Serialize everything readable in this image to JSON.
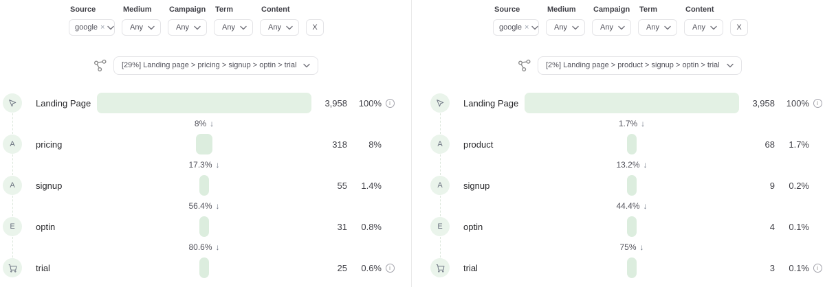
{
  "colors": {
    "bar_fill_large": "#e3f1e4",
    "bar_fill_small": "#dcedde",
    "node_bg": "#eaf4eb",
    "divider": "#e9e9e9"
  },
  "panels": [
    {
      "filters": {
        "fields": [
          {
            "label": "Source",
            "value": "google",
            "removable": true
          },
          {
            "label": "Medium",
            "value": "Any"
          },
          {
            "label": "Campaign",
            "value": "Any"
          },
          {
            "label": "Term",
            "value": "Any"
          },
          {
            "label": "Content",
            "value": "Any"
          }
        ],
        "clear_label": "X"
      },
      "funnel_select": {
        "value": "[29%]  Landing page > pricing > signup > optin > trial"
      },
      "funnel": {
        "steps": [
          {
            "icon": "cursor",
            "label": "Landing Page",
            "count": "3,958",
            "pct": "100%",
            "bar_pct": 100,
            "info": true
          },
          {
            "icon_letter": "A",
            "label": "pricing",
            "count": "318",
            "pct": "8%",
            "bar_pct": 8
          },
          {
            "icon_letter": "A",
            "label": "signup",
            "count": "55",
            "pct": "1.4%",
            "bar_pct": 1.4
          },
          {
            "icon_letter": "E",
            "label": "optin",
            "count": "31",
            "pct": "0.8%",
            "bar_pct": 0.8
          },
          {
            "icon": "cart",
            "label": "trial",
            "count": "25",
            "pct": "0.6%",
            "bar_pct": 0.6,
            "info": true
          }
        ],
        "conversions": [
          "8%",
          "17.3%",
          "56.4%",
          "80.6%"
        ]
      }
    },
    {
      "filters": {
        "fields": [
          {
            "label": "Source",
            "value": "google",
            "removable": true
          },
          {
            "label": "Medium",
            "value": "Any"
          },
          {
            "label": "Campaign",
            "value": "Any"
          },
          {
            "label": "Term",
            "value": "Any"
          },
          {
            "label": "Content",
            "value": "Any"
          }
        ],
        "clear_label": "X"
      },
      "funnel_select": {
        "value": "[2%]  Landing page > product > signup > optin > trial"
      },
      "funnel": {
        "steps": [
          {
            "icon": "cursor",
            "label": "Landing Page",
            "count": "3,958",
            "pct": "100%",
            "bar_pct": 100,
            "info": true
          },
          {
            "icon_letter": "A",
            "label": "product",
            "count": "68",
            "pct": "1.7%",
            "bar_pct": 1.7
          },
          {
            "icon_letter": "A",
            "label": "signup",
            "count": "9",
            "pct": "0.2%",
            "bar_pct": 0.2
          },
          {
            "icon_letter": "E",
            "label": "optin",
            "count": "4",
            "pct": "0.1%",
            "bar_pct": 0.1
          },
          {
            "icon": "cart",
            "label": "trial",
            "count": "3",
            "pct": "0.1%",
            "bar_pct": 0.1,
            "info": true
          }
        ],
        "conversions": [
          "1.7%",
          "13.2%",
          "44.4%",
          "75%"
        ]
      }
    }
  ]
}
